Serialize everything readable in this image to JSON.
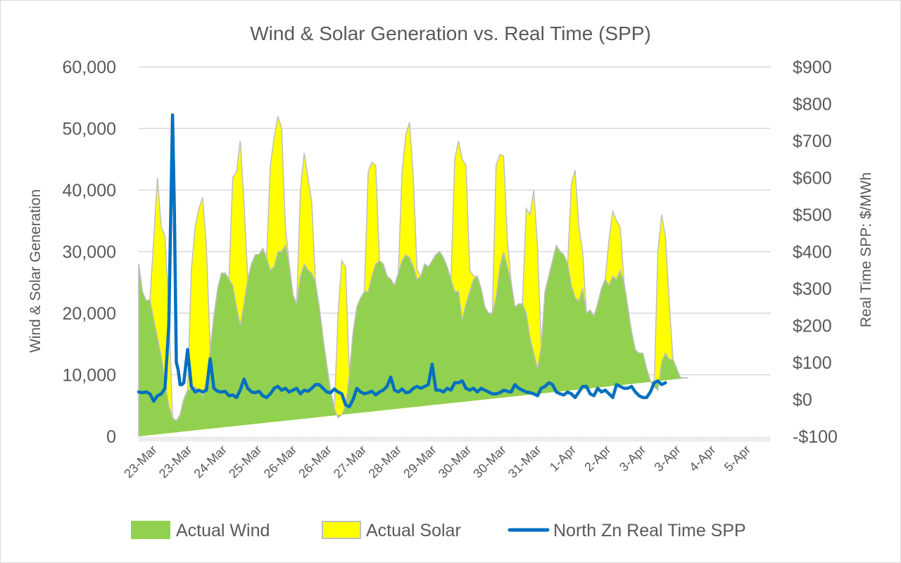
{
  "chart_data": {
    "type": "area",
    "title": "Wind & Solar Generation vs. Real Time (SPP)",
    "ylabel": "Wind & Solar Generation",
    "y2label": "Real Time SPP: $/MWh",
    "ylim": [
      0,
      60000
    ],
    "y2lim": [
      -100,
      900
    ],
    "yticks": [
      "0",
      "10,000",
      "20,000",
      "30,000",
      "40,000",
      "50,000",
      "60,000"
    ],
    "yticks_values": [
      0,
      10000,
      20000,
      30000,
      40000,
      50000,
      60000
    ],
    "y2ticks": [
      "-$100",
      "$0",
      "$100",
      "$200",
      "$300",
      "$400",
      "$500",
      "$600",
      "$700",
      "$800",
      "$900"
    ],
    "y2ticks_values": [
      -100,
      0,
      100,
      200,
      300,
      400,
      500,
      600,
      700,
      800,
      900
    ],
    "grid": true,
    "stacked": true,
    "xlim_hours": [
      0,
      336
    ],
    "xtick_labels": [
      "23-Mar",
      "23-Mar",
      "24-Mar",
      "25-Mar",
      "26-Mar",
      "26-Mar",
      "27-Mar",
      "28-Mar",
      "29-Mar",
      "30-Mar",
      "30-Mar",
      "31-Mar",
      "1-Apr",
      "2-Apr",
      "3-Apr",
      "3-Apr",
      "4-Apr",
      "5-Apr"
    ],
    "legend_position": "bottom",
    "series": [
      {
        "name": "Actual Wind",
        "kind": "stacked-area",
        "color": "#92d050",
        "hours": [
          0,
          2,
          4,
          6,
          8,
          10,
          12,
          14,
          16,
          18,
          20,
          22,
          24,
          26,
          28,
          30,
          32,
          34,
          36,
          38,
          40,
          42,
          44,
          46,
          48,
          50,
          52,
          54,
          56,
          58,
          60,
          62,
          64,
          66,
          68,
          70,
          72,
          74,
          76,
          78,
          80,
          82,
          84,
          86,
          88,
          90,
          92,
          94,
          96,
          98,
          100,
          102,
          104,
          106,
          108,
          110,
          112,
          114,
          116,
          118,
          120,
          122,
          124,
          126,
          128,
          130,
          132,
          134,
          136,
          138,
          140,
          142,
          144,
          146,
          148,
          150,
          152,
          154,
          156,
          158,
          160,
          162,
          164,
          166,
          168,
          170,
          172,
          174,
          176,
          178,
          180,
          182,
          184,
          186,
          188,
          190,
          192,
          194,
          196,
          198,
          200,
          202,
          204,
          206,
          208,
          210,
          212,
          214,
          216,
          218,
          220,
          222,
          224,
          226,
          228,
          230,
          232,
          234,
          236,
          238,
          240,
          242,
          244,
          246,
          248,
          250,
          252,
          254,
          256,
          258,
          260,
          262,
          264,
          266,
          268,
          270,
          272,
          274,
          276,
          278,
          280,
          282,
          284,
          286,
          288,
          290,
          292,
          294,
          296,
          298,
          300,
          302,
          304,
          306,
          308,
          310,
          312,
          314,
          316,
          318,
          320,
          322,
          324,
          326,
          328,
          330,
          332,
          334,
          336
        ],
        "values": [
          28000,
          23500,
          22000,
          22200,
          19000,
          16000,
          13000,
          9000,
          5000,
          3000,
          2500,
          3500,
          6000,
          7500,
          7800,
          8000,
          7500,
          6500,
          9000,
          14000,
          19500,
          24000,
          26500,
          26500,
          25500,
          24500,
          21000,
          18000,
          21500,
          25500,
          28000,
          29500,
          29500,
          30500,
          29000,
          27000,
          27500,
          30000,
          30000,
          31000,
          28000,
          23000,
          21500,
          26000,
          28000,
          27000,
          26500,
          25000,
          21000,
          16000,
          11500,
          7500,
          4500,
          3000,
          3500,
          5000,
          10000,
          17000,
          21000,
          22500,
          23500,
          23500,
          26000,
          28000,
          28500,
          28000,
          26000,
          25500,
          24500,
          26500,
          28500,
          29500,
          29000,
          27500,
          25500,
          26000,
          28000,
          27500,
          28500,
          29500,
          30000,
          29000,
          27500,
          25500,
          23500,
          23500,
          19000,
          21500,
          23500,
          25500,
          26000,
          24000,
          21000,
          20000,
          20000,
          22500,
          27500,
          30000,
          27500,
          25000,
          21000,
          21500,
          21500,
          20000,
          16000,
          13500,
          11000,
          14500,
          23500,
          26000,
          28500,
          31000,
          30000,
          29500,
          28000,
          24500,
          22500,
          22000,
          24000,
          20000,
          20500,
          19500,
          21500,
          24000,
          25500,
          24500,
          26000,
          25500,
          27000,
          25000,
          21000,
          17000,
          14000,
          13500,
          13500,
          11000,
          9000,
          8000,
          7500,
          12000,
          13500,
          12500,
          12500,
          11000,
          9500,
          9500,
          9500
        ]
      },
      {
        "name": "Actual Solar",
        "kind": "stacked-area",
        "color": "#ffff00",
        "note": "values are total (wind + solar) top outline",
        "hours": [
          0,
          2,
          4,
          6,
          8,
          10,
          12,
          14,
          16,
          18,
          20,
          22,
          24,
          26,
          28,
          30,
          32,
          34,
          36,
          38,
          40,
          42,
          44,
          46,
          48,
          50,
          52,
          54,
          56,
          58,
          60,
          62,
          64,
          66,
          68,
          70,
          72,
          74,
          76,
          78,
          80,
          82,
          84,
          86,
          88,
          90,
          92,
          94,
          96,
          98,
          100,
          102,
          104,
          106,
          108,
          110,
          112,
          114,
          116,
          118,
          120,
          122,
          124,
          126,
          128,
          130,
          132,
          134,
          136,
          138,
          140,
          142,
          144,
          146,
          148,
          150,
          152,
          154,
          156,
          158,
          160,
          162,
          164,
          166,
          168,
          170,
          172,
          174,
          176,
          178,
          180,
          182,
          184,
          186,
          188,
          190,
          192,
          194,
          196,
          198,
          200,
          202,
          204,
          206,
          208,
          210,
          212,
          214,
          216,
          218,
          220,
          222,
          224,
          226,
          228,
          230,
          232,
          234,
          236,
          238,
          240,
          242,
          244,
          246,
          248,
          250,
          252,
          254,
          256,
          258,
          260,
          262,
          264,
          266,
          268,
          270,
          272,
          274,
          276,
          278,
          280,
          282,
          284,
          286,
          288,
          290,
          292,
          294,
          296,
          298,
          300,
          302,
          304,
          306,
          308,
          310,
          312,
          314,
          316,
          318,
          320,
          322,
          324,
          326,
          328,
          330,
          332,
          334,
          336
        ],
        "values": [
          28000,
          23500,
          22000,
          22200,
          32000,
          42000,
          34000,
          32500,
          21000,
          3000,
          2500,
          3500,
          6000,
          7500,
          27000,
          34000,
          37000,
          38800,
          31000,
          14000,
          19500,
          24000,
          26500,
          26500,
          25500,
          42000,
          43000,
          48000,
          38000,
          25500,
          28000,
          29500,
          29500,
          30500,
          29000,
          44000,
          48500,
          52000,
          50000,
          34000,
          28000,
          23000,
          21500,
          40000,
          46000,
          42000,
          38000,
          25000,
          21000,
          16000,
          11500,
          7500,
          4500,
          20000,
          28500,
          27500,
          10000,
          17000,
          21000,
          22500,
          23500,
          43000,
          44500,
          44000,
          28500,
          28000,
          26000,
          25500,
          24500,
          26500,
          43000,
          49000,
          51000,
          42000,
          27000,
          26000,
          28000,
          27500,
          28500,
          29500,
          30000,
          29000,
          27500,
          25500,
          45000,
          48000,
          45000,
          44000,
          27000,
          26000,
          26000,
          24000,
          21000,
          20000,
          20000,
          44000,
          45800,
          45500,
          32000,
          25000,
          21000,
          21500,
          21500,
          37000,
          36000,
          40000,
          31000,
          14500,
          23500,
          26000,
          28500,
          31000,
          30000,
          29500,
          28000,
          41000,
          43200,
          34000,
          30000,
          20000,
          20500,
          19500,
          21500,
          24000,
          25500,
          32000,
          36500,
          35000,
          34000,
          25000,
          21000,
          17000,
          14000,
          13500,
          13500,
          11000,
          9000,
          8000,
          30000,
          36000,
          32500,
          22000,
          12500,
          11000,
          9500,
          9500,
          9500
        ]
      },
      {
        "name": "North Zn Real Time SPP",
        "kind": "line",
        "axis": "right",
        "color": "#0070c0",
        "hours": [
          0,
          2,
          4,
          6,
          8,
          10,
          12,
          14,
          16,
          18,
          19,
          20,
          21,
          22,
          23,
          24,
          26,
          28,
          30,
          32,
          34,
          36,
          38,
          40,
          42,
          44,
          46,
          48,
          50,
          52,
          54,
          56,
          58,
          60,
          62,
          64,
          66,
          68,
          70,
          72,
          74,
          76,
          78,
          80,
          82,
          84,
          86,
          88,
          90,
          92,
          94,
          96,
          98,
          100,
          102,
          104,
          106,
          108,
          110,
          112,
          114,
          116,
          118,
          120,
          122,
          124,
          126,
          128,
          130,
          132,
          134,
          136,
          138,
          140,
          142,
          144,
          146,
          148,
          150,
          152,
          154,
          156,
          158,
          160,
          162,
          164,
          166,
          168,
          170,
          172,
          174,
          176,
          178,
          180,
          182,
          184,
          186,
          188,
          190,
          192,
          194,
          196,
          198,
          200,
          202,
          204,
          206,
          208,
          210,
          212,
          214,
          216,
          218,
          220,
          222,
          224,
          226,
          228,
          230,
          232,
          234,
          236,
          238,
          240,
          242,
          244,
          246,
          248,
          250,
          252,
          254,
          256,
          258,
          260,
          262,
          264,
          266,
          268,
          270,
          272,
          274,
          276,
          278,
          280,
          282,
          284,
          286,
          288,
          290,
          292,
          294,
          296,
          298,
          300,
          302,
          304,
          306,
          308,
          310,
          312,
          314,
          316,
          318,
          320,
          322,
          324,
          326,
          328,
          330,
          332,
          334,
          336
        ],
        "values": [
          20,
          18,
          20,
          15,
          -5,
          10,
          15,
          30,
          200,
          770,
          500,
          100,
          80,
          40,
          40,
          45,
          135,
          35,
          20,
          25,
          20,
          25,
          110,
          30,
          22,
          20,
          22,
          10,
          12,
          5,
          25,
          55,
          30,
          20,
          18,
          22,
          10,
          5,
          15,
          30,
          35,
          25,
          30,
          20,
          25,
          30,
          15,
          25,
          22,
          30,
          40,
          40,
          30,
          20,
          18,
          28,
          20,
          15,
          -15,
          -20,
          0,
          30,
          20,
          15,
          18,
          22,
          12,
          20,
          25,
          35,
          60,
          25,
          20,
          28,
          18,
          20,
          30,
          35,
          30,
          35,
          40,
          95,
          25,
          25,
          20,
          30,
          25,
          45,
          45,
          50,
          30,
          25,
          30,
          20,
          30,
          25,
          20,
          15,
          15,
          18,
          25,
          22,
          20,
          40,
          30,
          25,
          20,
          18,
          15,
          10,
          30,
          35,
          45,
          40,
          20,
          15,
          12,
          20,
          15,
          5,
          20,
          35,
          35,
          15,
          10,
          30,
          20,
          25,
          15,
          5,
          40,
          35,
          30,
          30,
          35,
          20,
          10,
          5,
          5,
          20,
          45,
          50,
          40,
          45
        ]
      }
    ]
  }
}
